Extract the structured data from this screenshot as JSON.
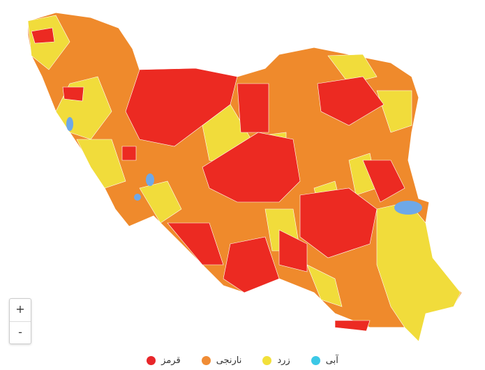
{
  "zoom_controls": {
    "zoom_in": "+",
    "zoom_out": "-"
  },
  "legend": [
    {
      "label": "قرمز",
      "color": "#e8262a"
    },
    {
      "label": "نارنجی",
      "color": "#f08c35"
    },
    {
      "label": "زرد",
      "color": "#f2e03a"
    },
    {
      "label": "آبی",
      "color": "#3cc8e6"
    }
  ],
  "map_colors": {
    "red": "#ec2a22",
    "orange": "#ef8a2c",
    "yellow": "#f1dc3b",
    "blue": "#6ea8e8"
  }
}
